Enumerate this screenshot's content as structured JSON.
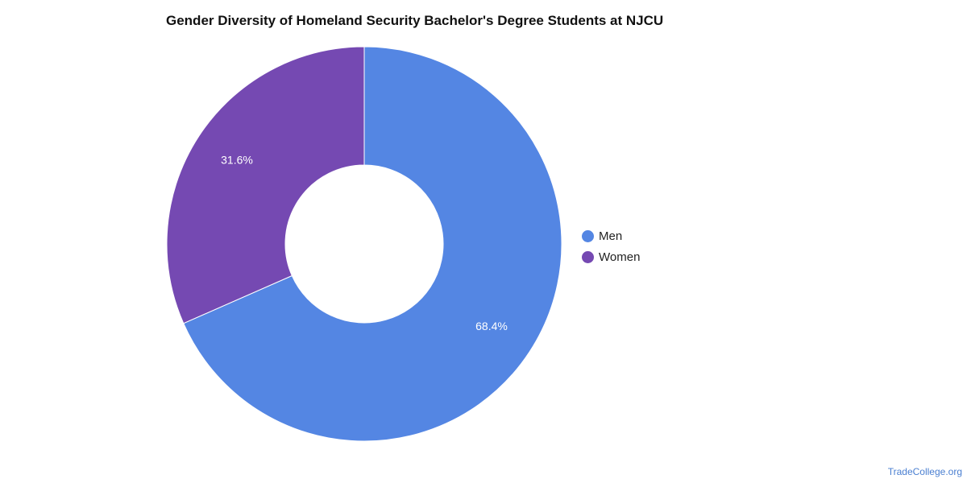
{
  "chart_data": {
    "type": "pie",
    "title": "Gender Diversity of Homeland Security Bachelor's Degree Students at NJCU",
    "series": [
      {
        "name": "Men",
        "value": 68.4,
        "label": "68.4%",
        "color": "#5486e3"
      },
      {
        "name": "Women",
        "value": 31.6,
        "label": "31.6%",
        "color": "#7549b2"
      }
    ],
    "legend_position": "right"
  },
  "source": "TradeCollege.org"
}
